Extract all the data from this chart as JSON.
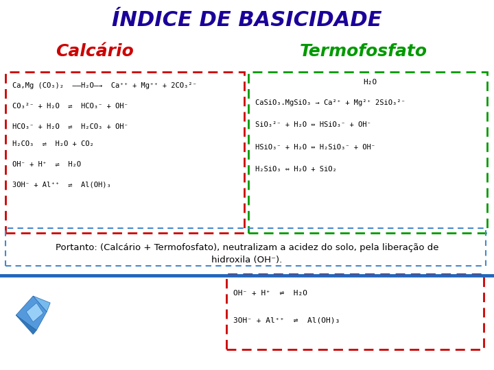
{
  "title": "ÍNDICE DE BASICIDADE",
  "title_color": "#1a0099",
  "calcario_label": "Calcário",
  "calcario_color": "#cc0000",
  "termofosfato_label": "Termofosfato",
  "termofosfato_color": "#009900",
  "bg_color": "#ffffff",
  "calcario_box_color": "#cc0000",
  "termofosfato_box_color": "#009900",
  "portanto_box_color": "#4488cc",
  "bottom_box_color": "#cc0000",
  "blue_line_color": "#2266bb",
  "calcario_lines": [
    "Ca,Mg (CO₃)₂  ——H₂O—→  Ca⁺⁺ + Mg⁺⁺ + 2CO₃²⁻",
    "CO₃²⁻ + H₂O  ⇌  HCO₃⁻ + OH⁻",
    "HCO₃⁻ + H₂O  ⇌  H₂CO₃ + OH⁻",
    "H₂CO₃  ⇌  H₂O + CO₂",
    "OH⁻ + H⁺  ⇌  H₂O",
    "3OH⁻ + Al⁺⁺  ⇌  Al(OH)₃"
  ],
  "termofosfato_lines": [
    "H₂O",
    "CaSiO₃.MgSiO₃ → Ca²⁺ + Mg²⁺ 2SiO₃²⁻",
    "SiO₃²⁻ + H₂O ⇔ HSiO₃⁻ + OH⁻",
    "HSiO₃⁻ + H₂O ⇔ H₂SiO₃⁻ + OH⁻",
    "H₂SiO₃ ⇔ H₂O + SiO₂"
  ],
  "portanto_text1": "Portanto: (Calcário + Termofosfato), neutralizam a acidez do solo, pela liberação de",
  "portanto_text2": "hidroxila (OH⁻).",
  "bottom_lines": [
    "OH⁻ + H⁺  ⇌  H₂O",
    "3OH⁻ + Al⁺⁺  ⇌  Al(OH)₃"
  ]
}
